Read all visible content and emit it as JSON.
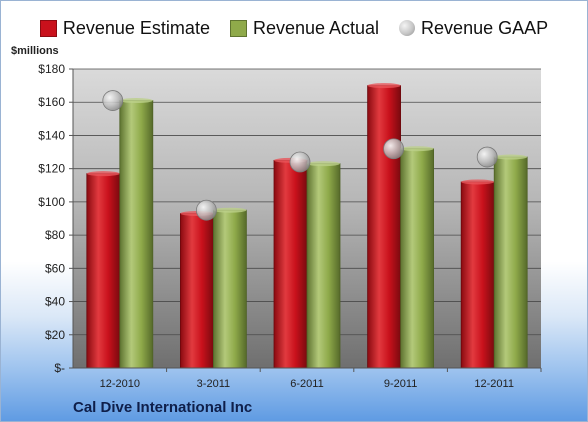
{
  "company": "Cal Dive International Inc",
  "colors": {
    "estimate": "#c9111c",
    "actual": "#8faa4a",
    "gaap": "#b9b9b9"
  },
  "chart_data": {
    "type": "bar",
    "categories": [
      "12-2010",
      "3-2011",
      "6-2011",
      "9-2011",
      "12-2011"
    ],
    "series": [
      {
        "name": "Revenue Estimate",
        "values": [
          117,
          93,
          125,
          170,
          112
        ]
      },
      {
        "name": "Revenue Actual",
        "values": [
          161,
          95,
          123,
          132,
          127
        ]
      },
      {
        "name": "Revenue GAAP",
        "marker": "circle",
        "values": [
          161,
          95,
          124,
          132,
          127
        ]
      }
    ],
    "ylabel": "$millions",
    "ylim": [
      0,
      180
    ],
    "yticks": [
      0,
      20,
      40,
      60,
      80,
      100,
      120,
      140,
      160,
      180
    ],
    "ytick_labels": [
      "$-",
      "$20",
      "$40",
      "$60",
      "$80",
      "$100",
      "$120",
      "$140",
      "$160",
      "$180"
    ],
    "grid": true,
    "legend_position": "top"
  }
}
